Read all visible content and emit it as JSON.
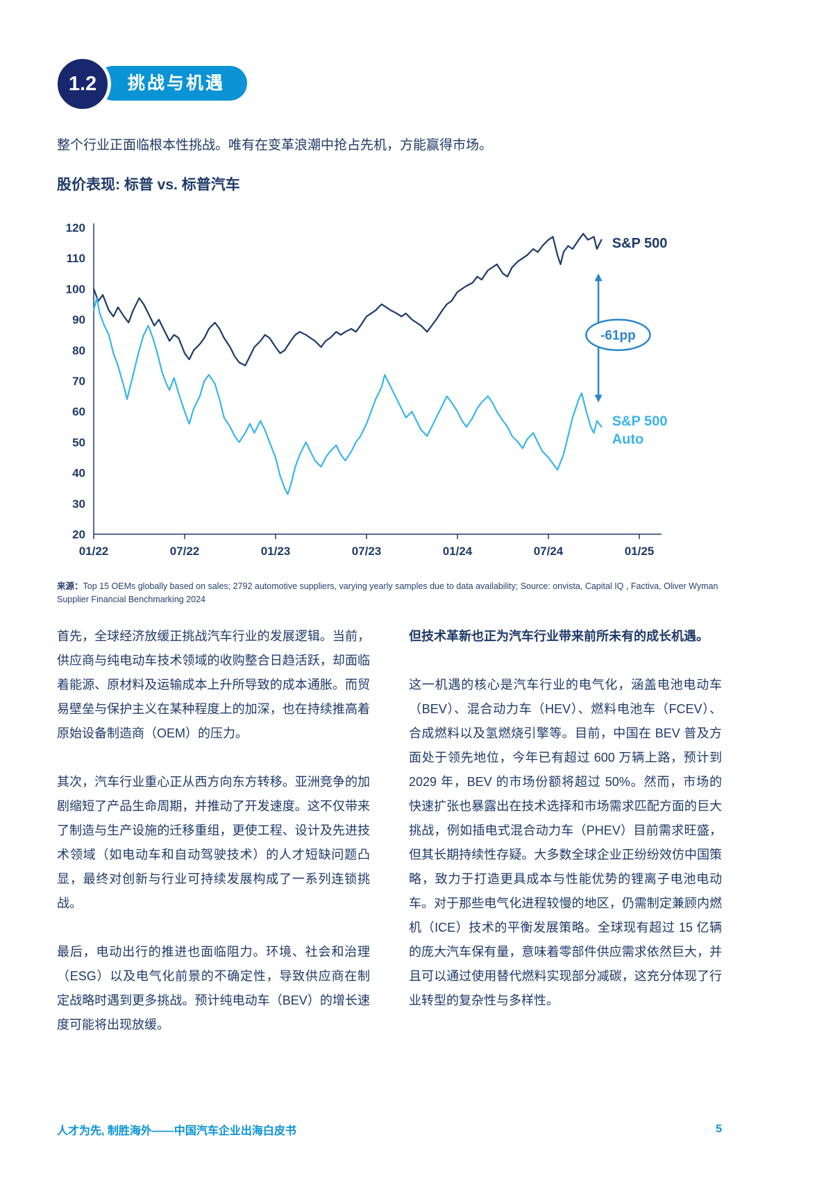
{
  "page": {
    "section_number": "1.2",
    "section_title": "挑战与机遇",
    "intro": "整个行业正面临根本性挑战。唯有在变革浪潮中抢占先机，方能赢得市场。",
    "source_label": "来源：",
    "source_text": "Top 15 OEMs globally based on sales; 2792 automotive suppliers, varying yearly samples due to data availability; Source: onvista, Capital IQ , Factiva, Oliver Wyman Supplier Financial Benchmarking 2024",
    "left_column": {
      "paragraphs": [
        "首先，全球经济放缓正挑战汽车行业的发展逻辑。当前，供应商与纯电动车技术领域的收购整合日趋活跃，却面临着能源、原材料及运输成本上升所导致的成本通胀。而贸易壁垒与保护主义在某种程度上的加深，也在持续推高着原始设备制造商（OEM）的压力。",
        "其次，汽车行业重心正从西方向东方转移。亚洲竞争的加剧缩短了产品生命周期，并推动了开发速度。这不仅带来了制造与生产设施的迁移重组，更使工程、设计及先进技术领域（如电动车和自动驾驶技术）的人才短缺问题凸显，最终对创新与行业可持续发展构成了一系列连锁挑战。",
        "最后，电动出行的推进也面临阻力。环境、社会和治理（ESG）以及电气化前景的不确定性，导致供应商在制定战略时遇到更多挑战。预计纯电动车（BEV）的增长速度可能将出现放缓。"
      ]
    },
    "right_column": {
      "lead": "但技术革新也正为汽车行业带来前所未有的成长机遇。",
      "paragraph": "这一机遇的核心是汽车行业的电气化，涵盖电池电动车（BEV）、混合动力车（HEV）、燃料电池车（FCEV）、合成燃料以及氢燃烧引擎等。目前，中国在 BEV 普及方面处于领先地位，今年已有超过 600 万辆上路，预计到 2029 年，BEV 的市场份额将超过 50%。然而，市场的快速扩张也暴露出在技术选择和市场需求匹配方面的巨大挑战，例如插电式混合动力车（PHEV）目前需求旺盛，但其长期持续性存疑。大多数全球企业正纷纷效仿中国策略，致力于打造更具成本与性能优势的锂离子电池电动车。对于那些电气化进程较慢的地区，仍需制定兼顾内燃机（ICE）技术的平衡发展策略。全球现有超过 15 亿辆的庞大汽车保有量，意味着零部件供应需求依然巨大，并且可以通过使用替代燃料实现部分减碳，这充分体现了行业转型的复杂性与多样性。"
    },
    "footer": {
      "text": "人才为先, 制胜海外——中国汽车企业出海白皮书",
      "page_number": "5"
    }
  },
  "chart_data": {
    "type": "line",
    "title": "股价表现: 标普 vs. 标普汽车",
    "axis_color": "#1f3a68",
    "grid": false,
    "legend_position": "right-inline",
    "x_axis": {
      "tick_labels": [
        "01/22",
        "07/22",
        "01/23",
        "07/23",
        "01/24",
        "07/24",
        "01/25"
      ],
      "tick_months": [
        0,
        6,
        12,
        18,
        24,
        30,
        36
      ],
      "months_max": 36
    },
    "y_axis": {
      "min": 20,
      "max": 120,
      "ticks": [
        120,
        110,
        100,
        90,
        80,
        70,
        60,
        50,
        40,
        30,
        20
      ]
    },
    "series": [
      {
        "name": "S&P 500",
        "color": "#1b3a6b",
        "label_lines": [
          "S&P 500"
        ],
        "label_month": 34.2,
        "label_value": 115,
        "points": [
          [
            0,
            100
          ],
          [
            0.3,
            96
          ],
          [
            0.6,
            98
          ],
          [
            1,
            93
          ],
          [
            1.3,
            91
          ],
          [
            1.6,
            94
          ],
          [
            2,
            91
          ],
          [
            2.3,
            89
          ],
          [
            2.6,
            93
          ],
          [
            3,
            97
          ],
          [
            3.3,
            95
          ],
          [
            3.6,
            92
          ],
          [
            4,
            88
          ],
          [
            4.3,
            90
          ],
          [
            4.6,
            87
          ],
          [
            5,
            83
          ],
          [
            5.3,
            85
          ],
          [
            5.6,
            84
          ],
          [
            6,
            79
          ],
          [
            6.3,
            77
          ],
          [
            6.6,
            80
          ],
          [
            7,
            82
          ],
          [
            7.3,
            84
          ],
          [
            7.6,
            87
          ],
          [
            8,
            89
          ],
          [
            8.3,
            87
          ],
          [
            8.6,
            84
          ],
          [
            9,
            81
          ],
          [
            9.3,
            78
          ],
          [
            9.6,
            76
          ],
          [
            10,
            75
          ],
          [
            10.3,
            78
          ],
          [
            10.6,
            81
          ],
          [
            11,
            83
          ],
          [
            11.3,
            85
          ],
          [
            11.6,
            84
          ],
          [
            12,
            81
          ],
          [
            12.3,
            79
          ],
          [
            12.6,
            80
          ],
          [
            13,
            83
          ],
          [
            13.3,
            85
          ],
          [
            13.6,
            86
          ],
          [
            14,
            85
          ],
          [
            14.3,
            84
          ],
          [
            14.6,
            83
          ],
          [
            15,
            81
          ],
          [
            15.3,
            83
          ],
          [
            15.6,
            84
          ],
          [
            16,
            86
          ],
          [
            16.3,
            85
          ],
          [
            16.6,
            86
          ],
          [
            17,
            87
          ],
          [
            17.3,
            86
          ],
          [
            17.6,
            88
          ],
          [
            18,
            91
          ],
          [
            18.3,
            92
          ],
          [
            18.6,
            93
          ],
          [
            19,
            95
          ],
          [
            19.3,
            94
          ],
          [
            19.6,
            93
          ],
          [
            20,
            92
          ],
          [
            20.3,
            91
          ],
          [
            20.6,
            92
          ],
          [
            21,
            90
          ],
          [
            21.3,
            89
          ],
          [
            21.6,
            88
          ],
          [
            22,
            86
          ],
          [
            22.3,
            88
          ],
          [
            22.6,
            90
          ],
          [
            23,
            93
          ],
          [
            23.3,
            95
          ],
          [
            23.6,
            96
          ],
          [
            24,
            99
          ],
          [
            24.3,
            100
          ],
          [
            24.6,
            101
          ],
          [
            25,
            102
          ],
          [
            25.3,
            104
          ],
          [
            25.6,
            103
          ],
          [
            26,
            106
          ],
          [
            26.3,
            107
          ],
          [
            26.6,
            108
          ],
          [
            27,
            105
          ],
          [
            27.3,
            104
          ],
          [
            27.6,
            107
          ],
          [
            28,
            109
          ],
          [
            28.3,
            110
          ],
          [
            28.6,
            111
          ],
          [
            29,
            113
          ],
          [
            29.3,
            112
          ],
          [
            29.6,
            114
          ],
          [
            30,
            116
          ],
          [
            30.3,
            117
          ],
          [
            30.6,
            111
          ],
          [
            30.8,
            108
          ],
          [
            31,
            112
          ],
          [
            31.3,
            114
          ],
          [
            31.6,
            113
          ],
          [
            32,
            116
          ],
          [
            32.3,
            118
          ],
          [
            32.6,
            116
          ],
          [
            33,
            117
          ],
          [
            33.2,
            113
          ],
          [
            33.5,
            116
          ]
        ]
      },
      {
        "name": "S&P 500 Auto",
        "color": "#3ab5e8",
        "label_lines": [
          "S&P 500",
          "Auto"
        ],
        "label_month": 34.2,
        "label_value": 57,
        "points": [
          [
            0,
            93
          ],
          [
            0.2,
            97
          ],
          [
            0.4,
            92
          ],
          [
            0.7,
            88
          ],
          [
            1,
            85
          ],
          [
            1.3,
            79
          ],
          [
            1.6,
            75
          ],
          [
            2,
            68
          ],
          [
            2.2,
            64
          ],
          [
            2.5,
            70
          ],
          [
            2.8,
            76
          ],
          [
            3,
            80
          ],
          [
            3.3,
            85
          ],
          [
            3.6,
            88
          ],
          [
            3.9,
            84
          ],
          [
            4.2,
            79
          ],
          [
            4.5,
            73
          ],
          [
            4.8,
            69
          ],
          [
            5,
            67
          ],
          [
            5.3,
            71
          ],
          [
            5.6,
            66
          ],
          [
            6,
            60
          ],
          [
            6.3,
            56
          ],
          [
            6.6,
            61
          ],
          [
            7,
            65
          ],
          [
            7.3,
            70
          ],
          [
            7.6,
            72
          ],
          [
            8,
            69
          ],
          [
            8.3,
            64
          ],
          [
            8.6,
            58
          ],
          [
            9,
            55
          ],
          [
            9.3,
            52
          ],
          [
            9.6,
            50
          ],
          [
            10,
            53
          ],
          [
            10.3,
            56
          ],
          [
            10.6,
            53
          ],
          [
            11,
            57
          ],
          [
            11.3,
            54
          ],
          [
            11.6,
            50
          ],
          [
            12,
            45
          ],
          [
            12.3,
            39
          ],
          [
            12.6,
            35
          ],
          [
            12.8,
            33
          ],
          [
            13,
            36
          ],
          [
            13.3,
            42
          ],
          [
            13.6,
            46
          ],
          [
            14,
            50
          ],
          [
            14.3,
            47
          ],
          [
            14.6,
            44
          ],
          [
            15,
            42
          ],
          [
            15.3,
            45
          ],
          [
            15.6,
            47
          ],
          [
            16,
            49
          ],
          [
            16.3,
            46
          ],
          [
            16.6,
            44
          ],
          [
            17,
            47
          ],
          [
            17.3,
            50
          ],
          [
            17.6,
            52
          ],
          [
            18,
            56
          ],
          [
            18.3,
            60
          ],
          [
            18.6,
            64
          ],
          [
            19,
            68
          ],
          [
            19.2,
            72
          ],
          [
            19.5,
            69
          ],
          [
            19.8,
            66
          ],
          [
            20,
            64
          ],
          [
            20.3,
            61
          ],
          [
            20.6,
            58
          ],
          [
            21,
            60
          ],
          [
            21.3,
            57
          ],
          [
            21.6,
            54
          ],
          [
            22,
            52
          ],
          [
            22.3,
            55
          ],
          [
            22.6,
            58
          ],
          [
            23,
            62
          ],
          [
            23.3,
            65
          ],
          [
            23.6,
            63
          ],
          [
            24,
            60
          ],
          [
            24.3,
            57
          ],
          [
            24.6,
            55
          ],
          [
            25,
            58
          ],
          [
            25.3,
            61
          ],
          [
            25.6,
            63
          ],
          [
            26,
            65
          ],
          [
            26.3,
            63
          ],
          [
            26.6,
            60
          ],
          [
            27,
            57
          ],
          [
            27.3,
            55
          ],
          [
            27.6,
            52
          ],
          [
            28,
            50
          ],
          [
            28.3,
            48
          ],
          [
            28.6,
            51
          ],
          [
            29,
            53
          ],
          [
            29.3,
            50
          ],
          [
            29.6,
            47
          ],
          [
            30,
            45
          ],
          [
            30.3,
            43
          ],
          [
            30.6,
            41
          ],
          [
            31,
            46
          ],
          [
            31.3,
            52
          ],
          [
            31.6,
            58
          ],
          [
            32,
            64
          ],
          [
            32.2,
            66
          ],
          [
            32.5,
            60
          ],
          [
            32.8,
            55
          ],
          [
            33,
            53
          ],
          [
            33.2,
            57
          ],
          [
            33.5,
            55
          ]
        ]
      }
    ],
    "annotation": {
      "label": "-61pp",
      "color": "#2a86c8",
      "arrow_month": 33.3,
      "arrow_top_value": 105,
      "arrow_bottom_value": 63,
      "ellipse_month": 34.6,
      "ellipse_value": 85
    }
  }
}
